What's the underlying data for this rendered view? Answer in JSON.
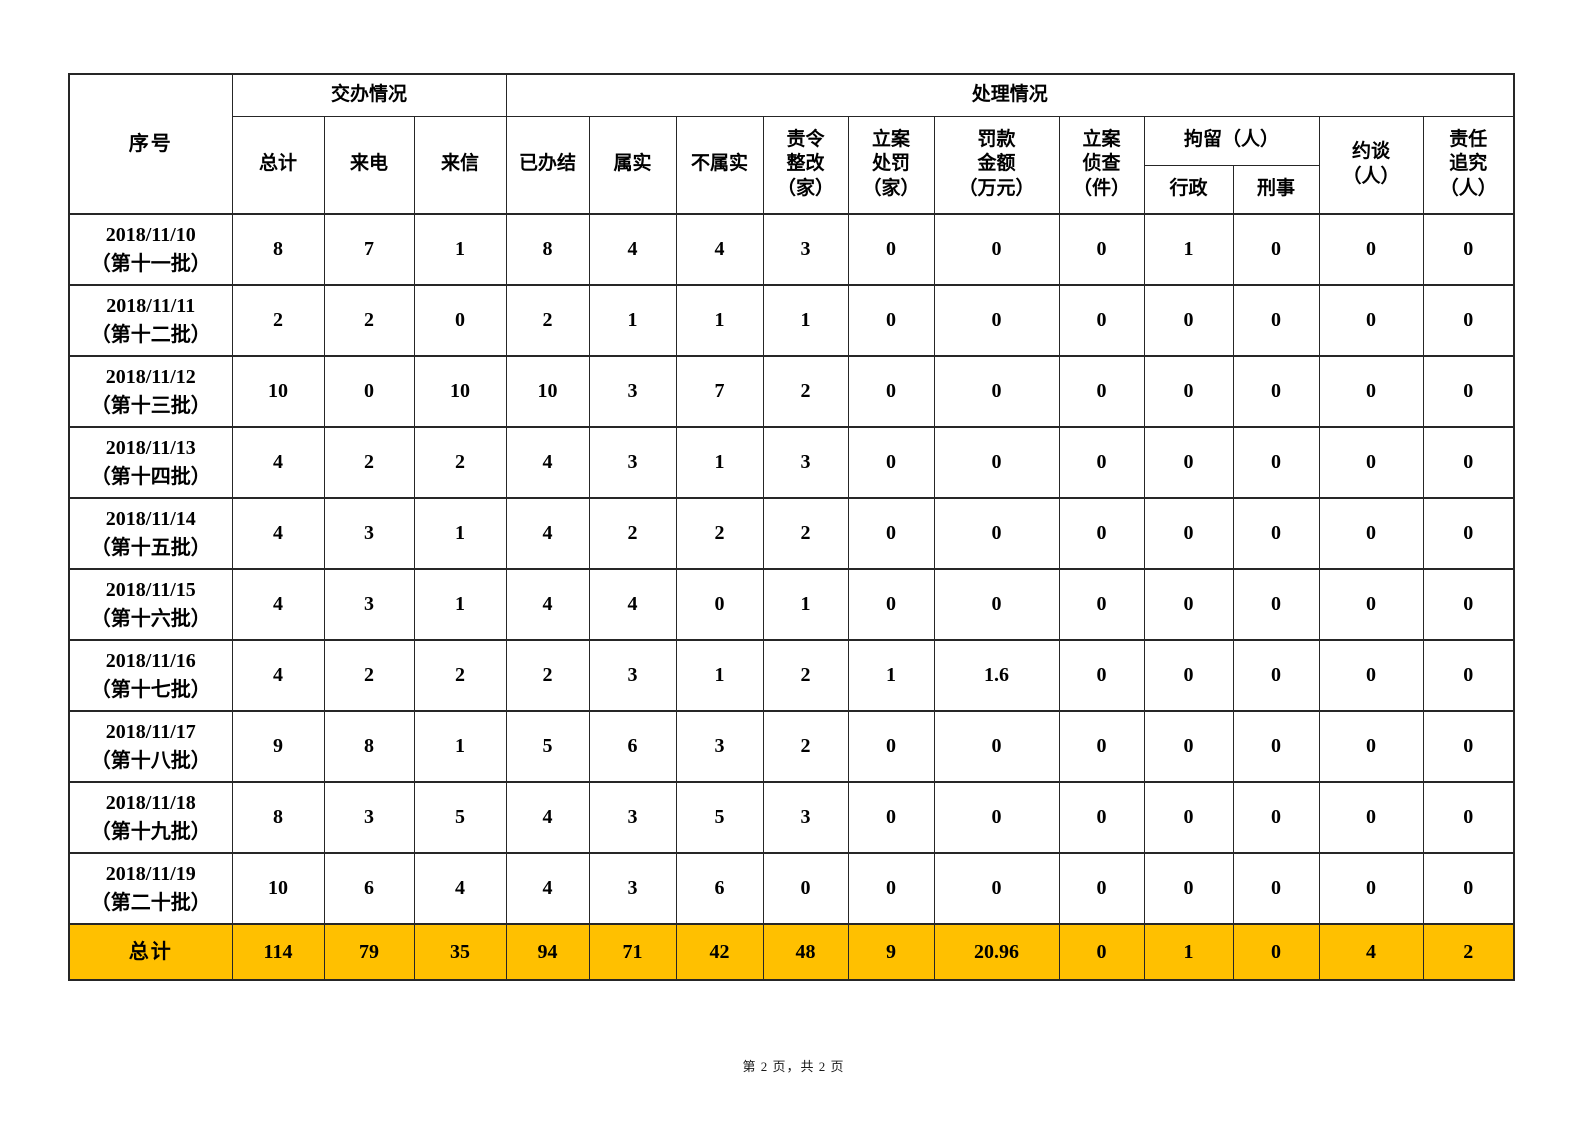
{
  "colors": {
    "highlight": "#FFC000",
    "border": "#262626"
  },
  "page": {
    "footer": "第 2 页，共 2 页"
  },
  "table": {
    "header": {
      "serial": "序号",
      "group_assign": "交办情况",
      "group_handle": "处理情况",
      "col_total": "总计",
      "col_calls": "来电",
      "col_letters": "来信",
      "col_closed": "已办结",
      "col_true": "属实",
      "col_untrue": "不属实",
      "col_rectify": "责令\n整改\n（家）",
      "col_punish": "立案\n处罚\n（家）",
      "col_fine": "罚款\n金额\n（万元）",
      "col_investigate": "立案\n侦查\n（件）",
      "col_detain": "拘留（人）",
      "col_detain_admin": "行政",
      "col_detain_criminal": "刑事",
      "col_interview": "约谈\n（人）",
      "col_accountability": "责任\n追究\n（人）"
    },
    "rows": [
      {
        "date": "2018/11/10",
        "batch": "（第十一批）",
        "values": [
          8,
          7,
          1,
          8,
          4,
          4,
          3,
          0,
          0,
          0,
          1,
          0,
          0,
          0
        ]
      },
      {
        "date": "2018/11/11",
        "batch": "（第十二批）",
        "values": [
          2,
          2,
          0,
          2,
          1,
          1,
          1,
          0,
          0,
          0,
          0,
          0,
          0,
          0
        ]
      },
      {
        "date": "2018/11/12",
        "batch": "（第十三批）",
        "values": [
          10,
          0,
          10,
          10,
          3,
          7,
          2,
          0,
          0,
          0,
          0,
          0,
          0,
          0
        ]
      },
      {
        "date": "2018/11/13",
        "batch": "（第十四批）",
        "values": [
          4,
          2,
          2,
          4,
          3,
          1,
          3,
          0,
          0,
          0,
          0,
          0,
          0,
          0
        ]
      },
      {
        "date": "2018/11/14",
        "batch": "（第十五批）",
        "values": [
          4,
          3,
          1,
          4,
          2,
          2,
          2,
          0,
          0,
          0,
          0,
          0,
          0,
          0
        ]
      },
      {
        "date": "2018/11/15",
        "batch": "（第十六批）",
        "values": [
          4,
          3,
          1,
          4,
          4,
          0,
          1,
          0,
          0,
          0,
          0,
          0,
          0,
          0
        ]
      },
      {
        "date": "2018/11/16",
        "batch": "（第十七批）",
        "values": [
          4,
          2,
          2,
          2,
          3,
          1,
          2,
          1,
          1.6,
          0,
          0,
          0,
          0,
          0
        ]
      },
      {
        "date": "2018/11/17",
        "batch": "（第十八批）",
        "values": [
          9,
          8,
          1,
          5,
          6,
          3,
          2,
          0,
          0,
          0,
          0,
          0,
          0,
          0
        ]
      },
      {
        "date": "2018/11/18",
        "batch": "（第十九批）",
        "values": [
          8,
          3,
          5,
          4,
          3,
          5,
          3,
          0,
          0,
          0,
          0,
          0,
          0,
          0
        ]
      },
      {
        "date": "2018/11/19",
        "batch": "（第二十批）",
        "values": [
          10,
          6,
          4,
          4,
          3,
          6,
          0,
          0,
          0,
          0,
          0,
          0,
          0,
          0
        ]
      }
    ],
    "total": {
      "label": "总计",
      "values": [
        114,
        79,
        35,
        94,
        71,
        42,
        48,
        9,
        20.96,
        0,
        1,
        0,
        4,
        2
      ]
    }
  }
}
